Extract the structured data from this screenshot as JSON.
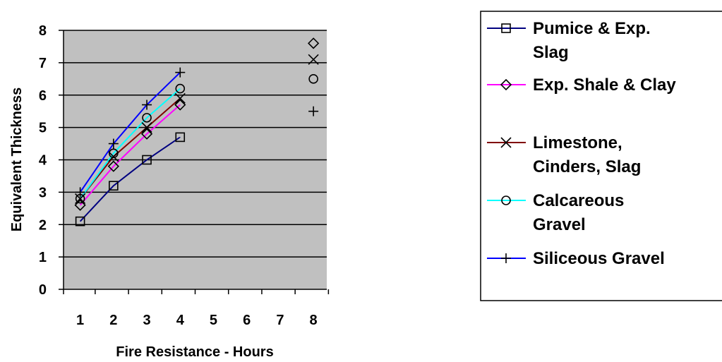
{
  "chart_data": {
    "type": "line",
    "title": "",
    "xlabel": "Fire Resistance - Hours",
    "ylabel": "Equivalent Thickness",
    "categories": [
      "1",
      "2",
      "3",
      "4",
      "5",
      "6",
      "7",
      "8"
    ],
    "ylim": [
      0,
      8
    ],
    "yticks": [
      "0",
      "1",
      "2",
      "3",
      "4",
      "5",
      "6",
      "7",
      "8"
    ],
    "grid": "horizontal",
    "plot_background": "#c0c0c0",
    "legend_position": "right",
    "series": [
      {
        "name": "Pumice & Exp. Slag",
        "legend_lines": [
          "Pumice & Exp.",
          "Slag"
        ],
        "color": "#000080",
        "marker": "square",
        "x": [
          1,
          2,
          3,
          4
        ],
        "values": [
          2.1,
          3.2,
          4.0,
          4.7
        ],
        "extra_points": []
      },
      {
        "name": "Exp. Shale & Clay",
        "legend_lines": [
          "Exp. Shale & Clay"
        ],
        "color": "#ff00ff",
        "marker": "diamond",
        "x": [
          1,
          2,
          3,
          4
        ],
        "values": [
          2.6,
          3.8,
          4.8,
          5.7
        ],
        "extra_points": [
          {
            "x": 8,
            "y": 7.6
          }
        ]
      },
      {
        "name": "Limestone, Cinders, Slag",
        "legend_lines": [
          "Limestone,",
          "Cinders, Slag"
        ],
        "color": "#800000",
        "marker": "x",
        "x": [
          1,
          2,
          3,
          4
        ],
        "values": [
          2.8,
          4.1,
          5.0,
          5.9
        ],
        "extra_points": [
          {
            "x": 8,
            "y": 7.1
          }
        ]
      },
      {
        "name": "Calcareous Gravel",
        "legend_lines": [
          "Calcareous",
          "Gravel"
        ],
        "color": "#00ffff",
        "marker": "circle",
        "x": [
          1,
          2,
          3,
          4
        ],
        "values": [
          2.8,
          4.2,
          5.3,
          6.2
        ],
        "extra_points": [
          {
            "x": 8,
            "y": 6.5
          }
        ]
      },
      {
        "name": "Siliceous Gravel",
        "legend_lines": [
          "Siliceous Gravel"
        ],
        "color": "#0000ff",
        "marker": "plus",
        "x": [
          1,
          2,
          3,
          4
        ],
        "values": [
          3.0,
          4.5,
          5.7,
          6.7
        ],
        "extra_points": [
          {
            "x": 8,
            "y": 5.5
          }
        ]
      }
    ]
  }
}
